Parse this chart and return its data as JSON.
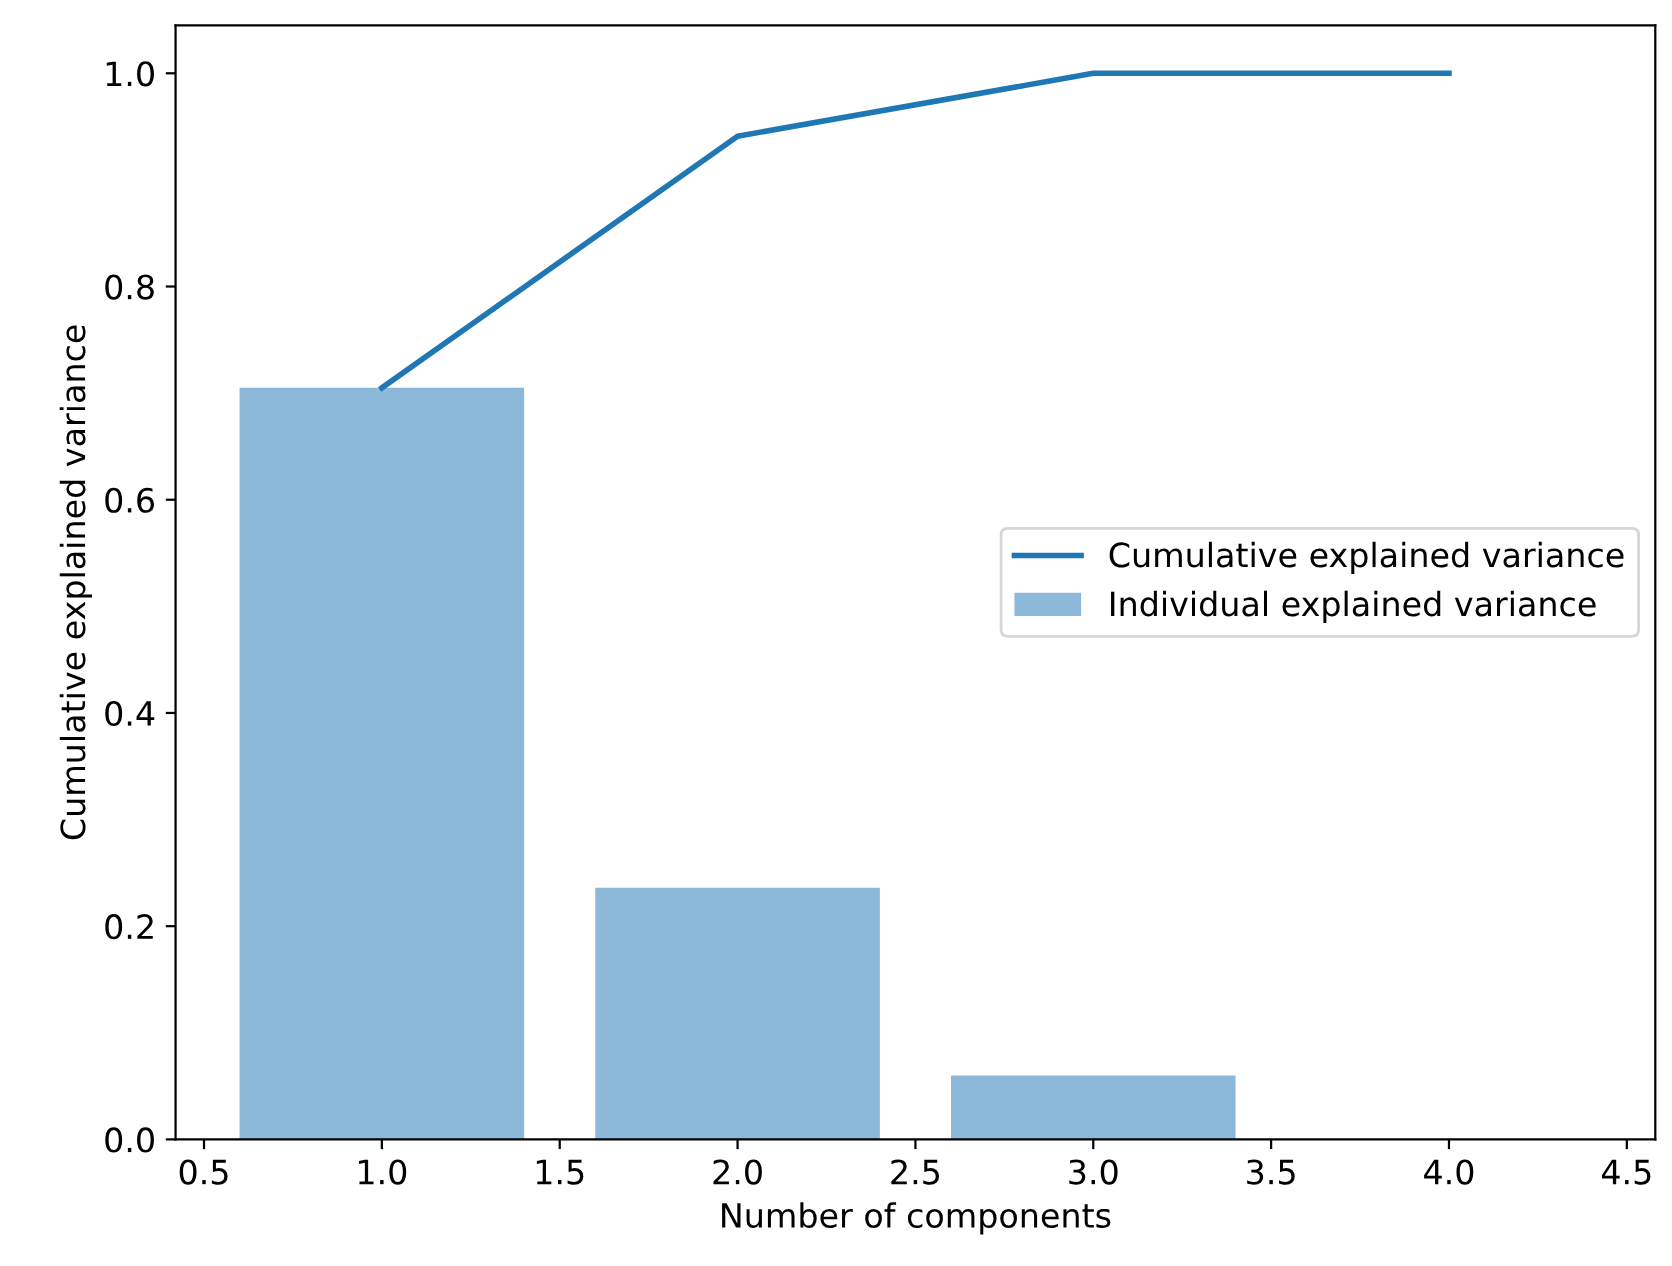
{
  "chart_data": {
    "type": "bar",
    "xlabel": "Number of components",
    "ylabel": "Cumulative explained variance",
    "x": [
      1,
      2,
      3,
      4
    ],
    "series": [
      {
        "name": "Individual explained variance",
        "color": "#8cb8da",
        "values": [
          0.705,
          0.236,
          0.06,
          0.0
        ]
      },
      {
        "name": "Cumulative explained variance",
        "type": "line",
        "color": "#1f77b4",
        "values": [
          0.705,
          0.941,
          1.0,
          1.0
        ]
      }
    ],
    "xlim": [
      0.42,
      4.58
    ],
    "ylim": [
      0,
      1.045
    ],
    "xticks": [
      {
        "value": 0.5,
        "label": "0.5"
      },
      {
        "value": 1.0,
        "label": "1.0"
      },
      {
        "value": 1.5,
        "label": "1.5"
      },
      {
        "value": 2.0,
        "label": "2.0"
      },
      {
        "value": 2.5,
        "label": "2.5"
      },
      {
        "value": 3.0,
        "label": "3.0"
      },
      {
        "value": 3.5,
        "label": "3.5"
      },
      {
        "value": 4.0,
        "label": "4.0"
      },
      {
        "value": 4.5,
        "label": "4.5"
      }
    ],
    "yticks": [
      {
        "value": 0.0,
        "label": "0.0"
      },
      {
        "value": 0.2,
        "label": "0.2"
      },
      {
        "value": 0.4,
        "label": "0.4"
      },
      {
        "value": 0.6,
        "label": "0.6"
      },
      {
        "value": 0.8,
        "label": "0.8"
      },
      {
        "value": 1.0,
        "label": "1.0"
      }
    ],
    "legend": "center right",
    "grid": false
  }
}
